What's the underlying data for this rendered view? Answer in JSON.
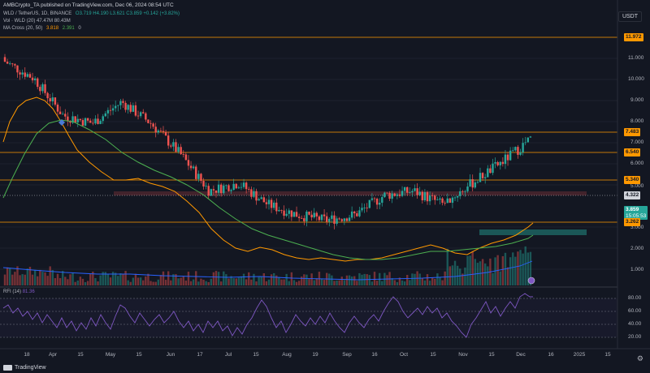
{
  "header": {
    "publisher_line": "AMBCrypto_TA published on TradingView.com, Dec 06, 2024 08:54 UTC",
    "symbol_line": "WLD / TetherUS, 1D, BINANCE",
    "ohlc": "O3.719 H4.190 L3.621 C3.859 +0.142 (+3.82%)",
    "volume": "Vol · WLD (20)  47.47M  80.43M",
    "ma_cross_label": "MA Cross (20, 50)",
    "ma_cross_fast": "3.818",
    "ma_cross_slow": "2.391",
    "ma_cross_extra": "0"
  },
  "currency_button": "USDT",
  "price_axis": {
    "labels": [
      "11.000",
      "10.000",
      "9.000",
      "8.000",
      "7.000",
      "6.000",
      "5.000",
      "3.000",
      "2.000",
      "1.000"
    ]
  },
  "price_tags": {
    "p11972": "11.972",
    "p7483": "7.483",
    "p6540": "6.540",
    "p5340": "5.340",
    "p4322": "4.322",
    "p3859": "3.859",
    "countdown": "15:05:53",
    "p3262": "3.262"
  },
  "time_axis": {
    "labels": [
      "18",
      "Apr",
      "15",
      "May",
      "15",
      "Jun",
      "17",
      "Jul",
      "15",
      "Aug",
      "19",
      "Sep",
      "16",
      "Oct",
      "15",
      "Nov",
      "15",
      "Dec",
      "16",
      "2025",
      "15"
    ]
  },
  "rsi": {
    "label": "RFI (14)",
    "value": "81.36",
    "levels": [
      "80.00",
      "60.00",
      "40.00",
      "20.00"
    ]
  },
  "brand": "TradingView",
  "colors": {
    "background": "#131722",
    "up": "#26a69a",
    "down": "#ef5350",
    "ma_fast": "#ff9800",
    "ma_slow": "#4caf50",
    "volume_ma": "#2962ff",
    "rsi_line": "#7e57c2",
    "level_line": "#ff9800"
  },
  "chart_data": {
    "type": "candlestick",
    "title": "WLD / TetherUS, 1D, BINANCE",
    "price_levels": [
      11.972,
      7.483,
      6.54,
      5.34,
      4.322,
      3.262
    ],
    "last_price": 3.859,
    "price_axis_scale": "log",
    "ylim": [
      0.8,
      13.5
    ],
    "monthly_close_approx": [
      {
        "x": "Mar 18",
        "y": 9.0
      },
      {
        "x": "Apr 01",
        "y": 7.5
      },
      {
        "x": "Apr 15",
        "y": 5.0
      },
      {
        "x": "May 01",
        "y": 4.6
      },
      {
        "x": "May 15",
        "y": 5.8
      },
      {
        "x": "Jun 01",
        "y": 4.6
      },
      {
        "x": "Jun 17",
        "y": 3.3
      },
      {
        "x": "Jul 01",
        "y": 2.2
      },
      {
        "x": "Jul 15",
        "y": 2.4
      },
      {
        "x": "Aug 01",
        "y": 1.9
      },
      {
        "x": "Aug 19",
        "y": 1.7
      },
      {
        "x": "Sep 01",
        "y": 1.6
      },
      {
        "x": "Sep 16",
        "y": 1.7
      },
      {
        "x": "Oct 01",
        "y": 2.1
      },
      {
        "x": "Oct 15",
        "y": 2.2
      },
      {
        "x": "Nov 01",
        "y": 1.9
      },
      {
        "x": "Nov 15",
        "y": 2.4
      },
      {
        "x": "Dec 01",
        "y": 3.0
      },
      {
        "x": "Dec 06",
        "y": 3.859
      }
    ],
    "rsi_range": [
      0,
      100
    ],
    "rsi_last": 81.36
  }
}
